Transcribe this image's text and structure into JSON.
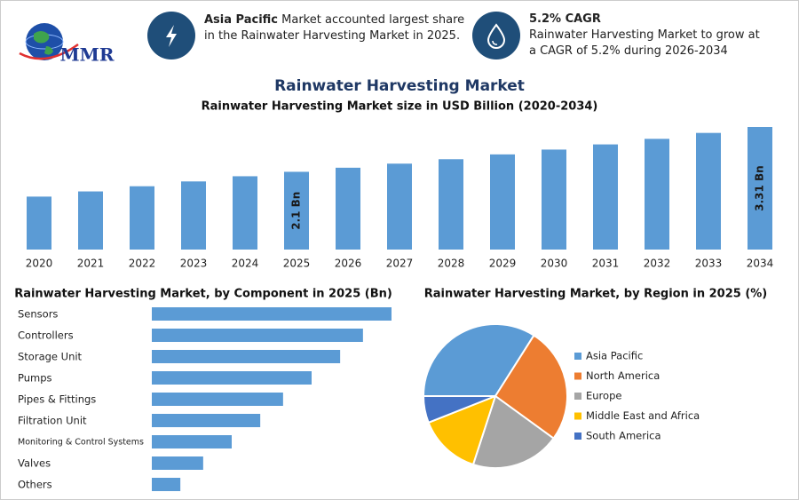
{
  "header": {
    "logo": "MMR",
    "card1": {
      "bold": "Asia Pacific",
      "text": "Market accounted largest share in the Rainwater Harvesting Market in 2025."
    },
    "card2": {
      "title": "5.2% CAGR",
      "text": "Rainwater Harvesting Market to grow at a CAGR of 5.2% during 2026-2034"
    }
  },
  "chart_data": [
    {
      "type": "bar",
      "title": "Rainwater Harvesting Market",
      "subtitle": "Rainwater Harvesting Market size in USD Billion (2020-2034)",
      "categories": [
        "2020",
        "2021",
        "2022",
        "2023",
        "2024",
        "2025",
        "2026",
        "2027",
        "2028",
        "2029",
        "2030",
        "2031",
        "2032",
        "2033",
        "2034"
      ],
      "values": [
        1.43,
        1.57,
        1.71,
        1.84,
        1.98,
        2.1,
        2.21,
        2.32,
        2.44,
        2.57,
        2.7,
        2.84,
        2.99,
        3.15,
        3.31
      ],
      "value_labels": [
        null,
        null,
        null,
        null,
        null,
        "2.1 Bn",
        null,
        null,
        null,
        null,
        null,
        null,
        null,
        null,
        "3.31 Bn"
      ],
      "color": "#5b9bd5"
    },
    {
      "type": "hbar",
      "title": "Rainwater Harvesting Market, by Component in 2025 (Bn)",
      "categories": [
        "Sensors",
        "Controllers",
        "Storage Unit",
        "Pumps",
        "Pipes & Fittings",
        "Filtration Unit",
        "Monitoring & Control Systems",
        "Valves",
        "Others"
      ],
      "values": [
        0.42,
        0.37,
        0.33,
        0.28,
        0.23,
        0.19,
        0.14,
        0.09,
        0.05
      ],
      "color": "#5b9bd5"
    },
    {
      "type": "pie",
      "title": "Rainwater Harvesting Market, by Region in 2025 (%)",
      "categories": [
        "Asia Pacific",
        "North America",
        "Europe",
        "Middle East and Africa",
        "South America"
      ],
      "values": [
        34,
        26,
        20,
        14,
        6
      ],
      "colors": [
        "#5b9bd5",
        "#ed7d31",
        "#a5a5a5",
        "#ffc000",
        "#4472c4"
      ]
    }
  ]
}
